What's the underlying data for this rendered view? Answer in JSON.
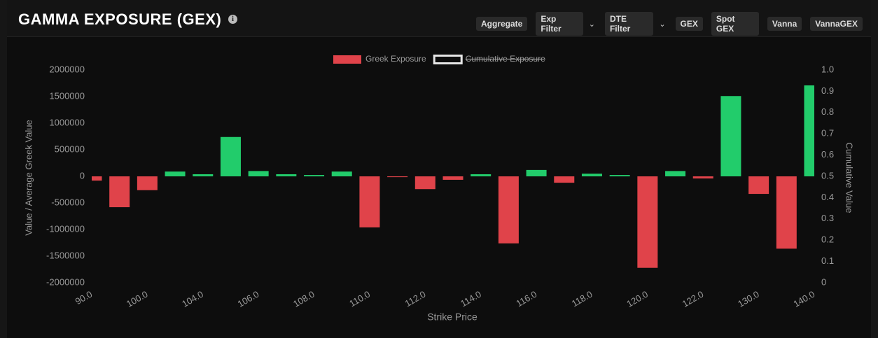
{
  "header": {
    "title": "GAMMA EXPOSURE (GEX)",
    "buttons": [
      "Aggregate",
      "Exp Filter",
      "DTE Filter",
      "GEX",
      "Spot GEX",
      "Vanna",
      "VannaGEX"
    ]
  },
  "chart_data": {
    "type": "bar",
    "x_label": "Strike Price",
    "y_label": "Value / Average Greek Value",
    "y2_label": "Cumulative Value",
    "categories": [
      "90.0",
      null,
      "100.0",
      null,
      "104.0",
      null,
      "106.0",
      null,
      "108.0",
      null,
      "110.0",
      null,
      "112.0",
      null,
      "114.0",
      null,
      "116.0",
      null,
      "118.0",
      null,
      "120.0",
      null,
      "122.0",
      null,
      "130.0",
      null,
      "140.0"
    ],
    "series": [
      {
        "name": "Greek Exposure",
        "color": "#e0434a",
        "positive_color": "#22cc6b",
        "values": [
          -80000,
          -580000,
          -260000,
          90000,
          40000,
          740000,
          100000,
          40000,
          25000,
          90000,
          -960000,
          -15000,
          -240000,
          -65000,
          40000,
          -1260000,
          120000,
          -120000,
          50000,
          25000,
          -1720000,
          100000,
          -40000,
          1510000,
          -330000,
          -1360000,
          1710000
        ]
      }
    ],
    "hidden_series": [
      {
        "name": "Cumulative Exposure",
        "axis": "y2",
        "color": "#e6e6e6"
      }
    ],
    "ylim": [
      -2000000,
      2000000
    ],
    "yticks": [
      2000000,
      1500000,
      1000000,
      500000,
      0,
      -500000,
      -1000000,
      -1500000,
      -2000000
    ],
    "y2lim": [
      0,
      1
    ],
    "y2ticks": [
      {
        "value": 1,
        "label": "1.0"
      },
      0.9,
      0.8,
      0.7,
      0.6,
      0.5,
      0.4,
      0.3,
      0.2,
      0.1,
      0
    ],
    "grid": false,
    "legend": "top"
  }
}
